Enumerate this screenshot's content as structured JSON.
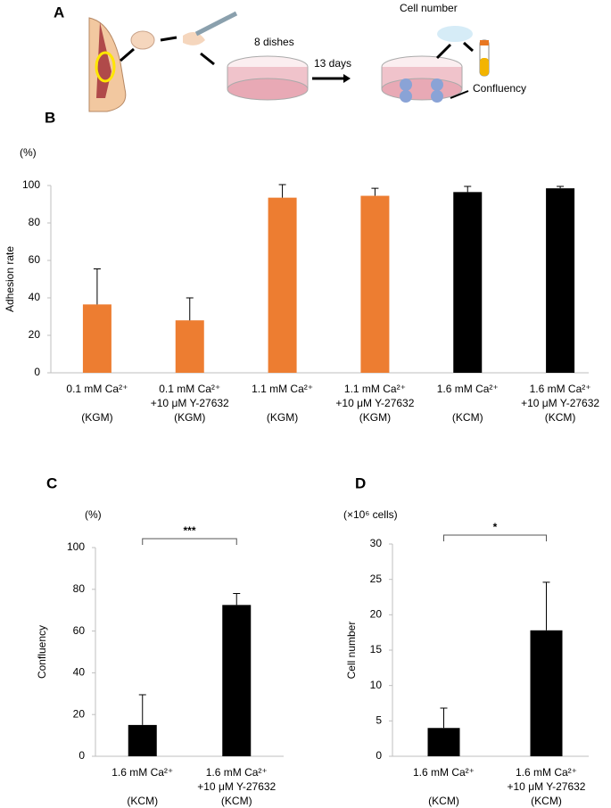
{
  "panel_a": {
    "label": "A",
    "texts": [
      "Cell number",
      "8 dishes",
      "13 days",
      "Confluency"
    ]
  },
  "chart_data": [
    {
      "type": "bar",
      "panel": "B",
      "unit": "(%)",
      "ylabel": "Adhesion rate",
      "categories": [
        [
          "0.1 mM Ca²⁺",
          "(KGM)"
        ],
        [
          "0.1 mM Ca²⁺",
          "+10 μM Y-27632",
          "(KGM)"
        ],
        [
          "1.1 mM Ca²⁺",
          "(KGM)"
        ],
        [
          "1.1 mM Ca²⁺",
          "+10 μM Y-27632",
          "(KGM)"
        ],
        [
          "1.6 mM Ca²⁺",
          "(KCM)"
        ],
        [
          "1.6 mM Ca²⁺",
          "+10 μM Y-27632",
          "(KCM)"
        ]
      ],
      "values": [
        36.5,
        28,
        93.5,
        94.5,
        96.5,
        98.5
      ],
      "errors": [
        19,
        12,
        7,
        4,
        3,
        1
      ],
      "colors": [
        "#ed7d31",
        "#ed7d31",
        "#ed7d31",
        "#ed7d31",
        "#000000",
        "#000000"
      ],
      "ylim": [
        0,
        100
      ],
      "yticks": [
        0,
        20,
        40,
        60,
        80,
        100
      ]
    },
    {
      "type": "bar",
      "panel": "C",
      "unit": "(%)",
      "ylabel": "Confluency",
      "significance": "***",
      "categories": [
        [
          "1.6 mM Ca²⁺",
          "(KCM)"
        ],
        [
          "1.6 mM Ca²⁺",
          "+10 μM Y-27632",
          "(KCM)"
        ]
      ],
      "values": [
        15,
        72.5
      ],
      "errors": [
        14.5,
        5.5
      ],
      "colors": [
        "#000000",
        "#000000"
      ],
      "ylim": [
        0,
        100
      ],
      "yticks": [
        0,
        20,
        40,
        60,
        80,
        100
      ]
    },
    {
      "type": "bar",
      "panel": "D",
      "unit": "(×10⁶ cells)",
      "ylabel": "Cell number",
      "significance": "*",
      "categories": [
        [
          "1.6 mM Ca²⁺",
          "(KCM)"
        ],
        [
          "1.6 mM Ca²⁺",
          "+10 μM Y-27632",
          "(KCM)"
        ]
      ],
      "values": [
        4,
        17.8
      ],
      "errors": [
        2.8,
        6.8
      ],
      "colors": [
        "#000000",
        "#000000"
      ],
      "ylim": [
        0,
        30
      ],
      "yticks": [
        0,
        5,
        10,
        15,
        20,
        25,
        30
      ]
    }
  ]
}
